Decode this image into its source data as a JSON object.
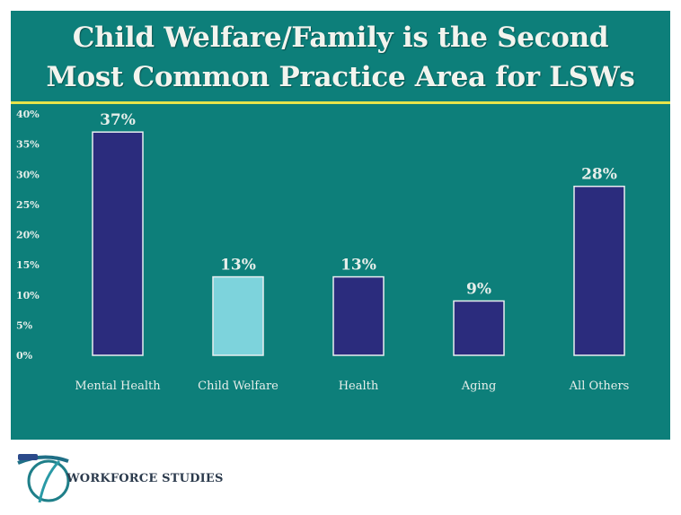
{
  "slide": {
    "title_line1": "Child Welfare/Family  is the Second",
    "title_line2": "Most Common Practice  Area for LSWs",
    "accent_line_color": "#e7e34a",
    "background_color": "#0d7f7a"
  },
  "chart_data": {
    "type": "bar",
    "title": "Child Welfare/Family  is the Second Most Common Practice  Area for LSWs",
    "xlabel": "",
    "ylabel": "",
    "ylim": [
      0,
      40
    ],
    "yticks": [
      "0%",
      "5%",
      "10%",
      "15%",
      "20%",
      "25%",
      "30%",
      "35%",
      "40%"
    ],
    "categories": [
      "Mental Health",
      "Child Welfare",
      "Health",
      "Aging",
      "All Others"
    ],
    "values": [
      37,
      13,
      13,
      9,
      28
    ],
    "data_labels": [
      "37%",
      "13%",
      "13%",
      "9%",
      "28%"
    ],
    "colors": [
      "#2b2c7d",
      "#7dd3dc",
      "#2b2c7d",
      "#2b2c7d",
      "#2b2c7d"
    ],
    "grid": false,
    "legend": "none"
  },
  "logo": {
    "text": "WORKFORCE STUDIES",
    "icon": "globe-swoosh-icon"
  }
}
